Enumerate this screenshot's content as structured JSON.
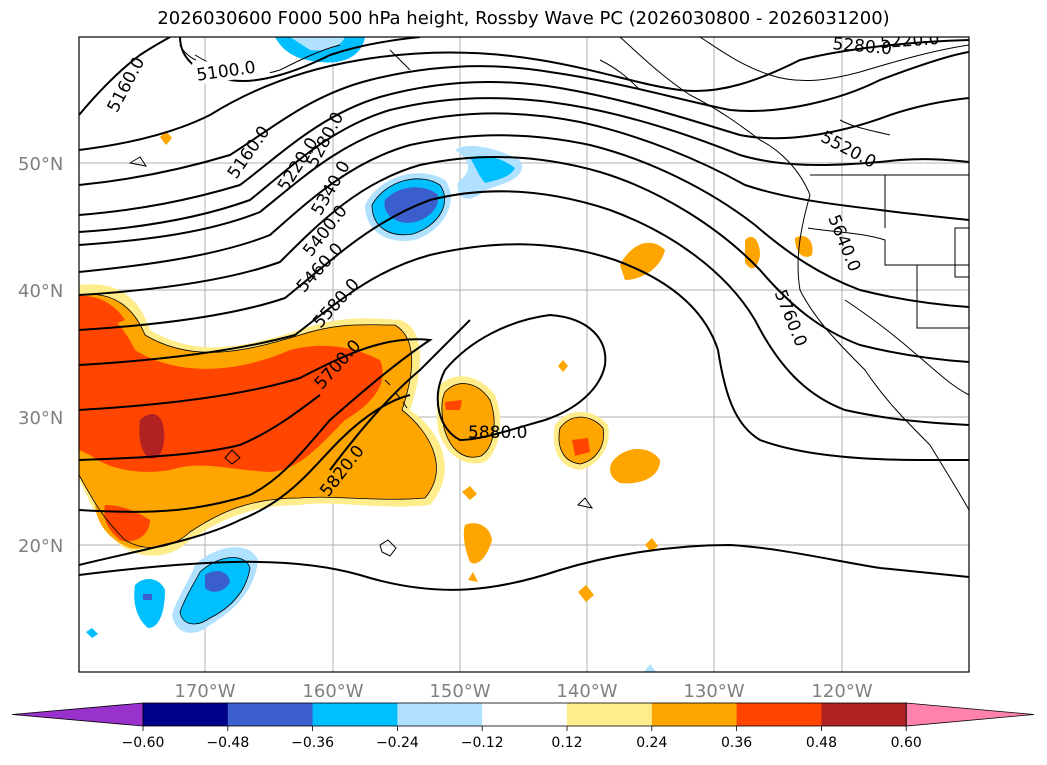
{
  "title": "2026030600 F000 500 hPa height, Rossby Wave PC (2026030800 - 2026031200)",
  "lat_labels": [
    "50°N",
    "40°N",
    "30°N",
    "20°N"
  ],
  "lon_labels": [
    "170°W",
    "160°W",
    "150°W",
    "140°W",
    "130°W",
    "120°W"
  ],
  "contour_labels": [
    "5100.0",
    "5160.0",
    "5160.0",
    "5220.0",
    "5220.0",
    "5280.0",
    "5280.0",
    "5340.0",
    "5400.0",
    "5460.0",
    "5520.0",
    "5580.0",
    "5640.0",
    "5700.0",
    "5760.0",
    "5820.0",
    "5880.0"
  ],
  "colorbar": {
    "ticks": [
      "−0.60",
      "−0.48",
      "−0.36",
      "−0.24",
      "−0.12",
      "0.12",
      "0.24",
      "0.36",
      "0.48",
      "0.60"
    ],
    "colors": [
      "#9932cc",
      "#00008b",
      "#3a5fcd",
      "#00bfff",
      "#b0e2ff",
      "#ffffff",
      "#ffec8b",
      "#ffa500",
      "#ff4500",
      "#b22222",
      "#ff82ab"
    ]
  }
}
